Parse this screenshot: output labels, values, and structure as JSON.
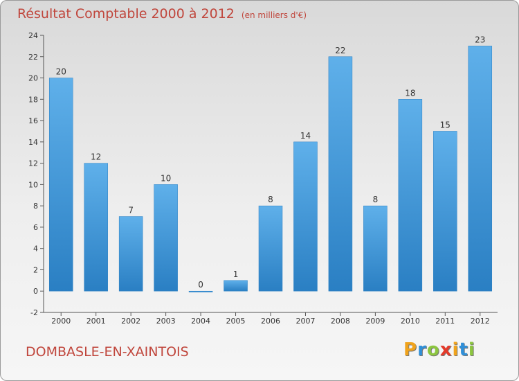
{
  "header": {
    "title": "Résultat Comptable 2000 à 2012",
    "subtitle": "(en milliers d'€)"
  },
  "footer": {
    "commune": "DOMBASLE-EN-XAINTOIS",
    "logo_letters": [
      "P",
      "r",
      "o",
      "x",
      "i",
      "t",
      "i"
    ],
    "logo_colors": [
      "#f0a31c",
      "#2f8fd8",
      "#8cc63f",
      "#e43a2a",
      "#f0a31c",
      "#2f8fd8",
      "#8cc63f"
    ]
  },
  "chart_data": {
    "type": "bar",
    "title": "Résultat Comptable 2000 à 2012",
    "subtitle": "(en milliers d'€)",
    "categories": [
      "2000",
      "2001",
      "2002",
      "2003",
      "2004",
      "2005",
      "2006",
      "2007",
      "2008",
      "2009",
      "2010",
      "2011",
      "2012"
    ],
    "values": [
      20,
      12,
      7,
      10,
      0,
      1,
      8,
      14,
      22,
      8,
      18,
      15,
      23
    ],
    "value_labels": [
      "20",
      "12",
      "7",
      "10",
      "0",
      "1",
      "8",
      "14",
      "22",
      "8",
      "18",
      "15",
      "23"
    ],
    "yticks": [
      -2,
      0,
      2,
      4,
      6,
      8,
      10,
      12,
      14,
      16,
      18,
      20,
      22,
      24
    ],
    "ytick_labels": [
      "-2",
      "0",
      "2",
      "4",
      "6",
      "8",
      "10",
      "12",
      "14",
      "16",
      "18",
      "20",
      "22",
      "24"
    ],
    "ylim": [
      -2,
      24
    ],
    "xlabel": "",
    "ylabel": "",
    "grid": false,
    "bar_color": "#2a7fc3",
    "bar_highlight": "#5fb0ea"
  }
}
